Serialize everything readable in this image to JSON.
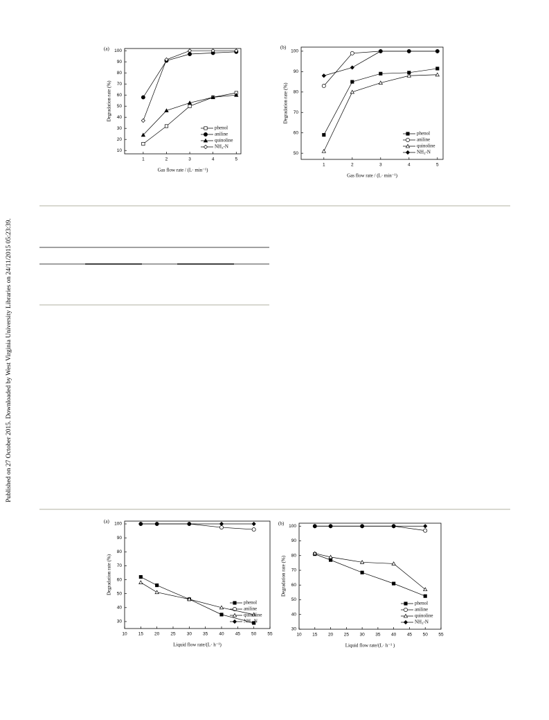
{
  "sidebar": "Published on 27 October 2015. Downloaded by West Virginia University Libraries on 24/11/2015 05:23:39.",
  "chart_data": [
    {
      "type": "line",
      "panel": "(a)",
      "xlabel": "Gas flow rate / (L· min⁻¹)",
      "ylabel": "Degradation rate (%)",
      "x": [
        1,
        2,
        3,
        4,
        5
      ],
      "xlim": [
        0.2,
        5.2
      ],
      "xticks": [
        1,
        2,
        3,
        4,
        5
      ],
      "ylim": [
        7,
        102
      ],
      "yticks": [
        10,
        20,
        30,
        40,
        50,
        60,
        70,
        80,
        90,
        100
      ],
      "legend": "lower right",
      "series": [
        {
          "name": "phenol",
          "color": "#000000",
          "marker": "square",
          "filled": false,
          "values": [
            16,
            32,
            50,
            58,
            62
          ]
        },
        {
          "name": "aniline",
          "color": "#000000",
          "marker": "circle",
          "filled": true,
          "values": [
            58,
            91,
            97,
            98,
            99
          ]
        },
        {
          "name": "quinoline",
          "color": "#000000",
          "marker": "triangle",
          "filled": true,
          "values": [
            24,
            46,
            53,
            58,
            60
          ]
        },
        {
          "name": "NH₃-N",
          "color": "#000000",
          "marker": "diamond",
          "filled": false,
          "values": [
            37,
            92,
            100,
            100,
            100
          ]
        }
      ]
    },
    {
      "type": "line",
      "panel": "(b)",
      "xlabel": "Gas flow rate / (L· min⁻¹)",
      "ylabel": "Degradation rate (%)",
      "x": [
        1,
        2,
        3,
        4,
        5
      ],
      "xlim": [
        0.2,
        5.2
      ],
      "xticks": [
        1,
        2,
        3,
        4,
        5
      ],
      "ylim": [
        47,
        102
      ],
      "yticks": [
        50,
        60,
        70,
        80,
        90,
        100
      ],
      "legend": "lower right",
      "series": [
        {
          "name": "phenol",
          "color": "#000000",
          "marker": "square",
          "filled": true,
          "values": [
            59,
            85,
            89,
            89.5,
            91.5
          ]
        },
        {
          "name": "aniline",
          "color": "#000000",
          "marker": "circle",
          "filled": false,
          "values": [
            83,
            99,
            100,
            100,
            100
          ]
        },
        {
          "name": "quinoline",
          "color": "#000000",
          "marker": "triangle",
          "filled": false,
          "values": [
            51,
            80,
            84.5,
            88,
            88.5
          ]
        },
        {
          "name": "NH₃-N",
          "color": "#000000",
          "marker": "diamond",
          "filled": true,
          "values": [
            88,
            92,
            100,
            100,
            100
          ]
        }
      ]
    },
    {
      "type": "line",
      "panel": "(a)",
      "xlabel": "Liquid flow rate/(L· h⁻¹)",
      "ylabel": "Degradation rate (%)",
      "x": [
        15,
        20,
        30,
        40,
        50
      ],
      "xlim": [
        10,
        55
      ],
      "xticks": [
        10,
        15,
        20,
        25,
        30,
        35,
        40,
        45,
        50,
        55
      ],
      "ylim": [
        25,
        102
      ],
      "yticks": [
        30,
        40,
        50,
        60,
        70,
        80,
        90,
        100
      ],
      "legend": "lower right",
      "series": [
        {
          "name": "phenol",
          "color": "#000000",
          "marker": "square",
          "filled": true,
          "values": [
            62,
            56,
            46,
            35,
            29
          ]
        },
        {
          "name": "aniline",
          "color": "#000000",
          "marker": "circle",
          "filled": false,
          "values": [
            100,
            100,
            100,
            97.5,
            96
          ]
        },
        {
          "name": "quinoline",
          "color": "#000000",
          "marker": "triangle",
          "filled": false,
          "values": [
            58,
            51,
            46,
            40,
            35
          ]
        },
        {
          "name": "NH₃-N",
          "color": "#000000",
          "marker": "diamond",
          "filled": true,
          "values": [
            100,
            100,
            100,
            100,
            100
          ]
        }
      ]
    },
    {
      "type": "line",
      "panel": "(b)",
      "xlabel": "Liquid flow rate/(L· h⁻¹ )",
      "ylabel": "Degradation rate (%)",
      "x": [
        15,
        20,
        30,
        40,
        50
      ],
      "xlim": [
        10,
        55
      ],
      "xticks": [
        10,
        15,
        20,
        25,
        30,
        35,
        40,
        45,
        50,
        55
      ],
      "ylim": [
        30,
        102
      ],
      "yticks": [
        30,
        40,
        50,
        60,
        70,
        80,
        90,
        100
      ],
      "legend": "lower right",
      "series": [
        {
          "name": "phenol",
          "color": "#000000",
          "marker": "square",
          "filled": true,
          "values": [
            81,
            77,
            68.5,
            61,
            52.5
          ]
        },
        {
          "name": "aniline",
          "color": "#000000",
          "marker": "circle",
          "filled": false,
          "values": [
            100,
            100,
            100,
            100,
            97
          ]
        },
        {
          "name": "quinoline",
          "color": "#000000",
          "marker": "triangle",
          "filled": false,
          "values": [
            81.5,
            79,
            75.5,
            74.5,
            57
          ]
        },
        {
          "name": "NH₃-N",
          "color": "#000000",
          "marker": "diamond",
          "filled": true,
          "values": [
            100,
            100,
            100,
            100,
            100
          ]
        }
      ]
    }
  ]
}
